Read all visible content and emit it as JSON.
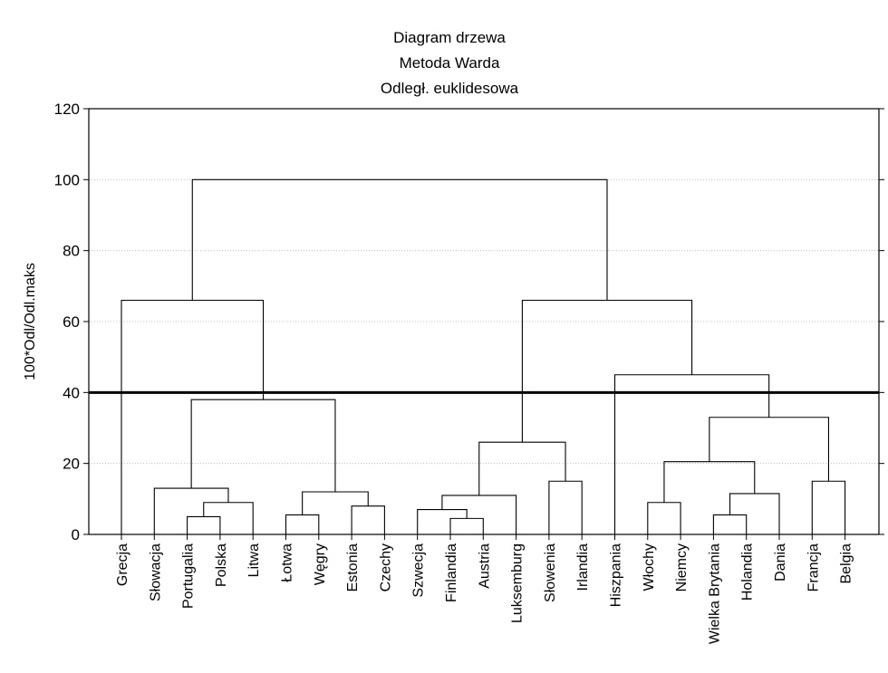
{
  "chart_data": {
    "type": "dendrogram",
    "title_lines": [
      "Diagram drzewa",
      "Metoda Warda",
      "Odległ. euklidesowa"
    ],
    "ylabel": "100*Odl/Odl.maks",
    "ylim": [
      0,
      120
    ],
    "yticks": [
      0,
      20,
      40,
      60,
      80,
      100,
      120
    ],
    "grid": true,
    "cut_line": 40,
    "leaves": [
      "Grecja",
      "Słowacja",
      "Portugalia",
      "Polska",
      "Litwa",
      "Łotwa",
      "Węgry",
      "Estonia",
      "Czechy",
      "Szwecja",
      "Finlandia",
      "Austria",
      "Luksemburg",
      "Słowenia",
      "Irlandia",
      "Hiszpania",
      "Włochy",
      "Niemcy",
      "Wielka Brytania",
      "Holandia",
      "Dania",
      "Francja",
      "Belgia"
    ],
    "merges": [
      {
        "a": "Portugalia",
        "b": "Polska",
        "height": 5
      },
      {
        "a": "m0",
        "b": "Litwa",
        "height": 9
      },
      {
        "a": "Słowacja",
        "b": "m1",
        "height": 13
      },
      {
        "a": "Łotwa",
        "b": "Węgry",
        "height": 5.5
      },
      {
        "a": "Estonia",
        "b": "Czechy",
        "height": 8
      },
      {
        "a": "m3",
        "b": "m4",
        "height": 12
      },
      {
        "a": "m2",
        "b": "m5",
        "height": 38
      },
      {
        "a": "Grecja",
        "b": "m6",
        "height": 66
      },
      {
        "a": "Finlandia",
        "b": "Austria",
        "height": 4.5
      },
      {
        "a": "Szwecja",
        "b": "m8",
        "height": 7
      },
      {
        "a": "m9",
        "b": "Luksemburg",
        "height": 11
      },
      {
        "a": "Słowenia",
        "b": "Irlandia",
        "height": 15
      },
      {
        "a": "m10",
        "b": "m11",
        "height": 26
      },
      {
        "a": "Włochy",
        "b": "Niemcy",
        "height": 9
      },
      {
        "a": "Wielka Brytania",
        "b": "Holandia",
        "height": 5.5
      },
      {
        "a": "m14",
        "b": "Dania",
        "height": 11.5
      },
      {
        "a": "m13",
        "b": "m15",
        "height": 20.5
      },
      {
        "a": "Francja",
        "b": "Belgia",
        "height": 15
      },
      {
        "a": "m16",
        "b": "m17",
        "height": 33
      },
      {
        "a": "Hiszpania",
        "b": "m18",
        "height": 45
      },
      {
        "a": "m12",
        "b": "m19",
        "height": 66
      },
      {
        "a": "m7",
        "b": "m20",
        "height": 100
      }
    ]
  }
}
